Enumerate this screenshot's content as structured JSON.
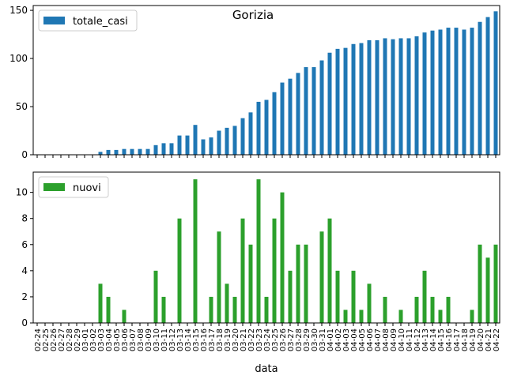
{
  "chart_data": [
    {
      "type": "bar",
      "title": "Gorizia",
      "xlabel": "",
      "ylabel": "",
      "ylim": [
        0,
        155
      ],
      "yticks": [
        0,
        50,
        100,
        150
      ],
      "legend_position": "top-left",
      "grid": false,
      "categories": [
        "02-24",
        "02-25",
        "02-26",
        "02-27",
        "02-28",
        "02-29",
        "03-01",
        "03-02",
        "03-03",
        "03-04",
        "03-05",
        "03-06",
        "03-07",
        "03-08",
        "03-09",
        "03-10",
        "03-11",
        "03-12",
        "03-13",
        "03-14",
        "03-15",
        "03-16",
        "03-17",
        "03-18",
        "03-19",
        "03-20",
        "03-21",
        "03-22",
        "03-23",
        "03-24",
        "03-25",
        "03-26",
        "03-27",
        "03-28",
        "03-29",
        "03-30",
        "03-31",
        "04-01",
        "04-02",
        "04-03",
        "04-04",
        "04-05",
        "04-06",
        "04-07",
        "04-08",
        "04-09",
        "04-10",
        "04-11",
        "04-12",
        "04-13",
        "04-14",
        "04-15",
        "04-16",
        "04-17",
        "04-18",
        "04-19",
        "04-20",
        "04-21",
        "04-22"
      ],
      "series": [
        {
          "name": "totale_casi",
          "color": "#1f77b4",
          "values": [
            0,
            0,
            0,
            0,
            0,
            0,
            0,
            0,
            3,
            5,
            5,
            6,
            6,
            6,
            6,
            10,
            12,
            12,
            20,
            20,
            31,
            16,
            18,
            25,
            28,
            30,
            38,
            44,
            55,
            57,
            65,
            75,
            79,
            85,
            91,
            91,
            98,
            106,
            110,
            111,
            115,
            116,
            119,
            119,
            121,
            120,
            121,
            121,
            123,
            127,
            129,
            130,
            132,
            132,
            130,
            132,
            138,
            143,
            149
          ]
        }
      ]
    },
    {
      "type": "bar",
      "title": "",
      "xlabel": "data",
      "ylabel": "",
      "ylim": [
        0,
        11.55
      ],
      "yticks": [
        0,
        2,
        4,
        6,
        8,
        10
      ],
      "legend_position": "top-left",
      "grid": false,
      "categories": [
        "02-24",
        "02-25",
        "02-26",
        "02-27",
        "02-28",
        "02-29",
        "03-01",
        "03-02",
        "03-03",
        "03-04",
        "03-05",
        "03-06",
        "03-07",
        "03-08",
        "03-09",
        "03-10",
        "03-11",
        "03-12",
        "03-13",
        "03-14",
        "03-15",
        "03-16",
        "03-17",
        "03-18",
        "03-19",
        "03-20",
        "03-21",
        "03-22",
        "03-23",
        "03-24",
        "03-25",
        "03-26",
        "03-27",
        "03-28",
        "03-29",
        "03-30",
        "03-31",
        "04-01",
        "04-02",
        "04-03",
        "04-04",
        "04-05",
        "04-06",
        "04-07",
        "04-08",
        "04-09",
        "04-10",
        "04-11",
        "04-12",
        "04-13",
        "04-14",
        "04-15",
        "04-16",
        "04-17",
        "04-18",
        "04-19",
        "04-20",
        "04-21",
        "04-22"
      ],
      "series": [
        {
          "name": "nuovi",
          "color": "#2ca02c",
          "values": [
            0,
            0,
            0,
            0,
            0,
            0,
            0,
            0,
            3,
            2,
            0,
            1,
            0,
            0,
            0,
            4,
            2,
            0,
            8,
            0,
            11,
            0,
            2,
            7,
            3,
            2,
            8,
            6,
            11,
            2,
            8,
            10,
            4,
            6,
            6,
            0,
            7,
            8,
            4,
            1,
            4,
            1,
            3,
            0,
            2,
            0,
            1,
            0,
            2,
            4,
            2,
            1,
            2,
            0,
            0,
            1,
            6,
            5,
            6
          ]
        }
      ]
    }
  ]
}
